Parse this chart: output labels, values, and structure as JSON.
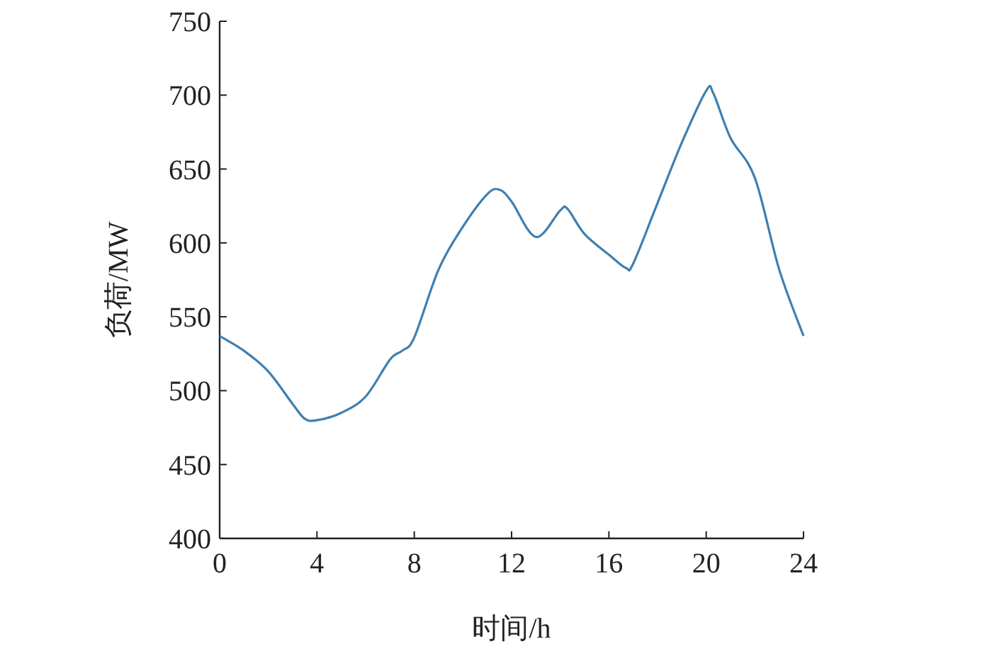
{
  "chart_data": {
    "type": "line",
    "xlabel": "时间/h",
    "ylabel": "负荷/MW",
    "x": [
      0,
      1,
      2,
      3,
      3.5,
      4,
      5,
      6,
      7,
      7.5,
      8,
      9,
      10,
      11,
      11.5,
      12,
      13,
      14,
      14.3,
      15,
      16,
      16.7,
      17,
      18,
      19,
      20,
      20.3,
      21,
      22,
      23,
      24
    ],
    "series": [
      {
        "color": "#3f7fb0",
        "values": [
          537,
          527,
          513,
          491,
          481,
          480,
          485,
          496,
          521,
          527,
          536,
          582,
          611,
          633,
          636,
          628,
          604,
          622,
          623,
          606,
          592,
          583,
          586,
          627,
          668,
          703,
          701,
          671,
          644,
          582,
          537
        ]
      }
    ],
    "xlim": [
      0,
      24
    ],
    "ylim": [
      400,
      750
    ],
    "xticks": [
      0,
      4,
      8,
      12,
      16,
      20,
      24
    ],
    "yticks": [
      400,
      450,
      500,
      550,
      600,
      650,
      700,
      750
    ]
  }
}
